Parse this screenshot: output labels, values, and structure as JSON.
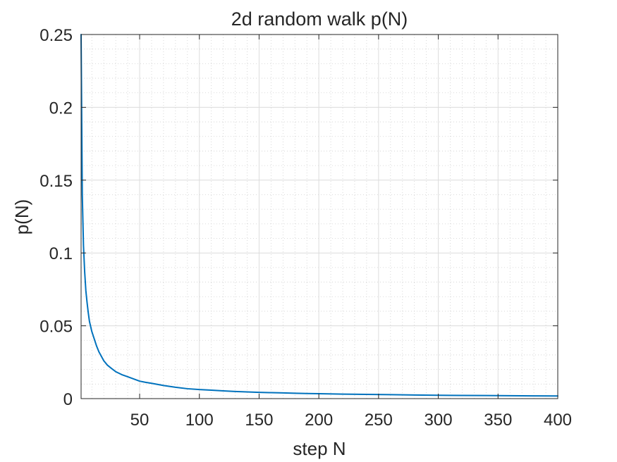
{
  "chart_data": {
    "type": "line",
    "title": "2d random walk p(N)",
    "xlabel": "step N",
    "ylabel": "p(N)",
    "xlim": [
      1,
      400
    ],
    "ylim": [
      0,
      0.25
    ],
    "xticks": [
      50,
      100,
      150,
      200,
      250,
      300,
      350,
      400
    ],
    "xtick_labels": [
      "50",
      "100",
      "150",
      "200",
      "250",
      "300",
      "350",
      "400"
    ],
    "yticks": [
      0,
      0.05,
      0.1,
      0.15,
      0.2,
      0.25
    ],
    "ytick_labels": [
      "0",
      "0.05",
      "0.1",
      "0.15",
      "0.2",
      "0.25"
    ],
    "grid": true,
    "minor_grid": true,
    "series_color": "#0072BD",
    "series": [
      {
        "x": [
          1,
          2,
          3,
          4,
          5,
          6,
          7,
          8,
          10,
          12,
          14,
          16,
          18,
          20,
          23,
          26,
          30,
          35,
          40,
          45,
          50,
          55,
          60,
          70,
          80,
          90,
          100,
          110,
          120,
          130,
          140,
          150,
          160,
          170,
          180,
          190,
          200,
          220,
          240,
          260,
          280,
          300,
          320,
          340,
          360,
          380,
          400
        ],
        "values": [
          0.25,
          0.14,
          0.105,
          0.087,
          0.074,
          0.066,
          0.059,
          0.053,
          0.046,
          0.041,
          0.036,
          0.032,
          0.029,
          0.026,
          0.023,
          0.021,
          0.0185,
          0.0165,
          0.015,
          0.0135,
          0.012,
          0.0112,
          0.0105,
          0.009,
          0.0078,
          0.0068,
          0.0062,
          0.0058,
          0.0053,
          0.0049,
          0.0046,
          0.0043,
          0.0041,
          0.0039,
          0.0037,
          0.0035,
          0.0034,
          0.0031,
          0.0029,
          0.0027,
          0.0025,
          0.0023,
          0.0022,
          0.0021,
          0.002,
          0.0019,
          0.0018
        ]
      }
    ]
  }
}
